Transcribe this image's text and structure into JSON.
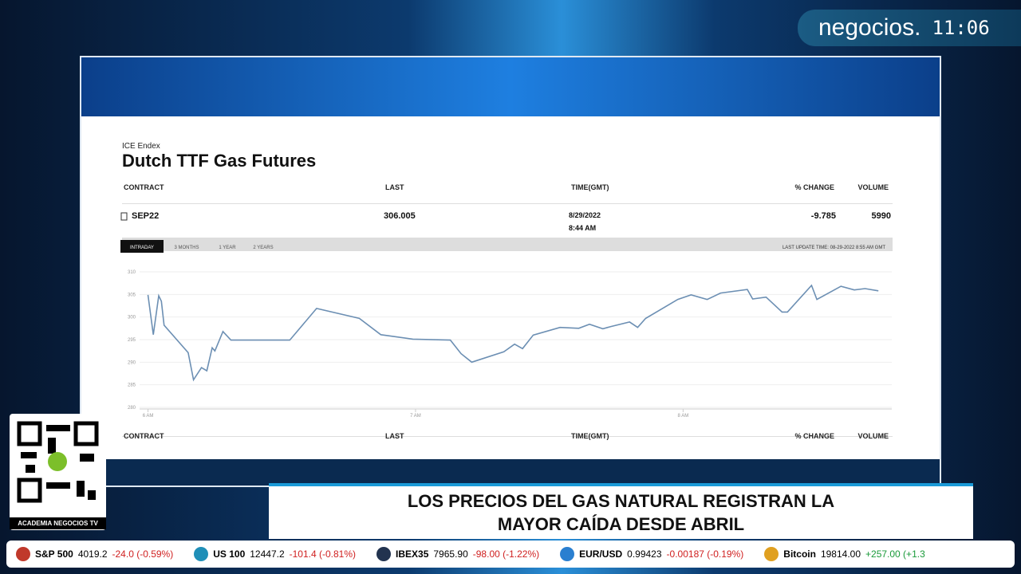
{
  "broadcast": {
    "channel": "negocios.",
    "time": "11:06",
    "qr_label": "ACADEMIA NEGOCIOS TV",
    "headline": [
      "LOS PRECIOS DEL GAS NATURAL REGISTRAN LA",
      "MAYOR CAÍDA DESDE ABRIL"
    ]
  },
  "page": {
    "exchange": "ICE Endex",
    "title": "Dutch TTF Gas Futures",
    "table": {
      "headers": [
        "CONTRACT",
        "LAST",
        "TIME(GMT)",
        "% CHANGE",
        "VOLUME"
      ],
      "rows": [
        [
          "SEP22",
          "306.005",
          "8/29/2022",
          "8:44 AM",
          "-9.785",
          "5990"
        ]
      ]
    },
    "tabs": [
      "INTRADAY",
      "3 MONTHS",
      "1 YEAR",
      "2 YEARS"
    ],
    "last_update": "LAST UPDATE TIME: 08-29-2022 8:55 AM GMT"
  },
  "chart_data": {
    "type": "line",
    "color": "#6c8fb3",
    "grid": true,
    "x": [
      6.0,
      6.02,
      6.04,
      6.05,
      6.06,
      6.15,
      6.17,
      6.2,
      6.22,
      6.24,
      6.25,
      6.28,
      6.31,
      6.53,
      6.63,
      6.79,
      6.87,
      6.99,
      7.13,
      7.17,
      7.21,
      7.33,
      7.37,
      7.4,
      7.44,
      7.54,
      7.61,
      7.65,
      7.7,
      7.73,
      7.8,
      7.83,
      7.86,
      7.98,
      8.03,
      8.09,
      8.14,
      8.24,
      8.26,
      8.31,
      8.37,
      8.39,
      8.48,
      8.5,
      8.59,
      8.64,
      8.68,
      8.73
    ],
    "values": [
      304.9,
      296.1,
      304.7,
      303.5,
      298.2,
      292.1,
      286.1,
      288.8,
      288.1,
      293.2,
      292.5,
      296.8,
      294.9,
      294.9,
      301.9,
      299.7,
      296.1,
      295.1,
      294.9,
      291.9,
      290.0,
      292.3,
      294.0,
      293.0,
      296.0,
      297.7,
      297.5,
      298.4,
      297.4,
      297.9,
      298.9,
      297.7,
      299.7,
      303.9,
      304.9,
      303.9,
      305.3,
      306.1,
      304.0,
      304.4,
      301.1,
      301.1,
      307.0,
      303.9,
      306.8,
      306.0,
      306.3,
      305.8
    ],
    "xlim": [
      5.9,
      8.78
    ],
    "xticks": [
      {
        "value": 6,
        "label": "6 AM"
      },
      {
        "value": 7,
        "label": "7 AM"
      },
      {
        "value": 8,
        "label": "8 AM"
      }
    ],
    "ylim": [
      280,
      310
    ],
    "yticks": [
      310,
      305,
      300,
      295,
      290,
      285,
      280
    ]
  },
  "ticker": [
    [
      "S&P 500",
      "4019.2",
      "-24.0 (-0.59%)"
    ],
    [
      "US 100",
      "12447.2",
      "-101.4 (-0.81%)"
    ],
    [
      "IBEX35",
      "7965.90",
      "-98.00 (-1.22%)"
    ],
    [
      "EUR/USD",
      "0.99423",
      "-0.00187 (-0.19%)"
    ],
    [
      "Bitcoin",
      "19814.00",
      "+257.00 (+1.3"
    ]
  ]
}
